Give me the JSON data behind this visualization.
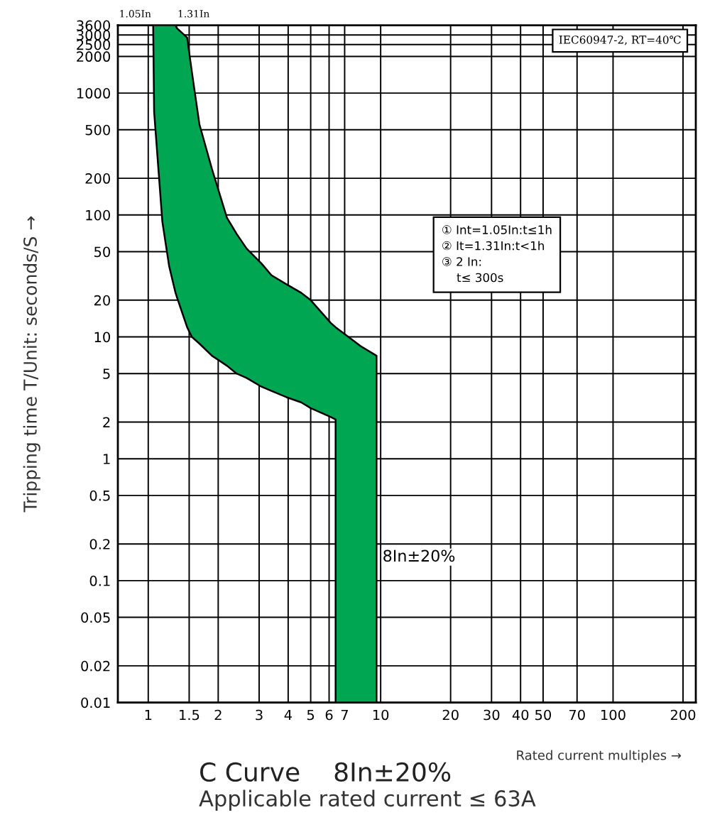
{
  "chart_data": {
    "type": "line",
    "title": "C Curve    8In±20%",
    "subtitle": "Applicable rated current ≤ 63A",
    "xlabel": "Rated current multiples →",
    "ylabel": "Tripping time T/Unit: seconds/S →",
    "log": "xy",
    "grid": true,
    "legend": false,
    "xlim": [
      0.74,
      227
    ],
    "ylim": [
      0.01,
      3600
    ],
    "xticks": [
      1,
      1.5,
      2,
      3,
      4,
      5,
      6,
      7,
      10,
      20,
      30,
      40,
      50,
      70,
      100,
      200
    ],
    "yticks": [
      0.01,
      0.02,
      0.05,
      0.1,
      0.2,
      0.5,
      1,
      2,
      5,
      10,
      20,
      50,
      100,
      200,
      500,
      1000,
      2000,
      2500,
      3000,
      3600
    ],
    "series": [
      {
        "color": "#00a651",
        "x": [
          1.05,
          1.06,
          1.15,
          1.23,
          1.31,
          1.33,
          1.47,
          1.54,
          1.66,
          1.88,
          2.18,
          2.4,
          2.65,
          3.07,
          3.39,
          3.93,
          4.55,
          5.0,
          6.1,
          6.4,
          6.4,
          8.2,
          9.6,
          9.6
        ],
        "values": [
          null,
          null,
          null,
          null,
          null,
          null,
          null,
          null,
          null,
          null,
          null,
          null,
          null,
          null,
          null,
          null,
          null,
          null,
          null,
          null,
          null,
          null,
          null,
          null
        ],
        "upper": [
          3600,
          3600,
          3600,
          3600,
          3600,
          3400,
          2850,
          1500,
          555,
          238,
          95,
          70,
          53,
          40,
          32,
          27,
          23,
          20,
          13,
          12,
          12,
          8.4,
          7,
          0.01
        ],
        "lower": [
          3600,
          700,
          88,
          38,
          23,
          21,
          12,
          10,
          8.8,
          7,
          5.8,
          5,
          4.6,
          3.9,
          3.6,
          3.2,
          2.9,
          2.6,
          2.2,
          2.1,
          0.01,
          0.01,
          0.01,
          0.01
        ]
      }
    ],
    "annotations": [
      {
        "text": "1.05In",
        "x": 1.05,
        "y": 3600
      },
      {
        "text": "1.31In",
        "x": 1.31,
        "y": 3600
      },
      {
        "text": "8In±20%",
        "x": 9.6,
        "y": 0.13
      },
      "IEC60947-2, RT=40℃",
      "① Int=1.05In:t≤1h\n② It=1.31In:t<1h\n③ 2 In:\n    t≤ 300s"
    ]
  }
}
